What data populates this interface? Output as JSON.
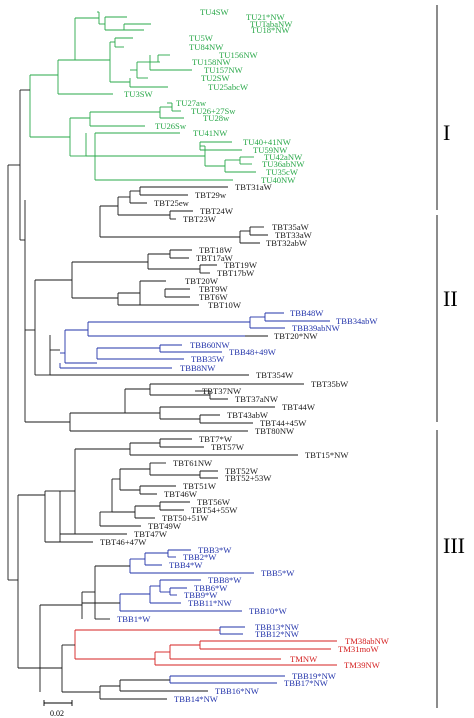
{
  "colors": {
    "I": "#2aa84a",
    "II": "#1a1a1a",
    "blue": "#2233aa",
    "III": "#1a1a1a",
    "red": "#d42020",
    "bar": "#000000"
  },
  "clades": [
    {
      "label": "I"
    },
    {
      "label": "II"
    },
    {
      "label": "III"
    }
  ],
  "scale": {
    "label": "0.02"
  },
  "leaves": [
    {
      "label": "TU4SW",
      "color": "I"
    },
    {
      "label": "TU21*NW",
      "color": "I"
    },
    {
      "label": "TUTabaNW",
      "color": "I"
    },
    {
      "label": "TU18*NW",
      "color": "I"
    },
    {
      "label": "TU5W",
      "color": "I"
    },
    {
      "label": "TU84NW",
      "color": "I"
    },
    {
      "label": "TU156NW",
      "color": "I"
    },
    {
      "label": "TU158NW",
      "color": "I"
    },
    {
      "label": "TU157NW",
      "color": "I"
    },
    {
      "label": "TU2SW",
      "color": "I"
    },
    {
      "label": "TU25abcW",
      "color": "I"
    },
    {
      "label": "TU3SW",
      "color": "I"
    },
    {
      "label": "TU27aw",
      "color": "I"
    },
    {
      "label": "TU26+27Sw",
      "color": "I"
    },
    {
      "label": "TU28w",
      "color": "I"
    },
    {
      "label": "TU26Sw",
      "color": "I"
    },
    {
      "label": "TU41NW",
      "color": "I"
    },
    {
      "label": "TU40+41NW",
      "color": "I"
    },
    {
      "label": "TU59NW",
      "color": "I"
    },
    {
      "label": "TU42aNW",
      "color": "I"
    },
    {
      "label": "TU36abNW",
      "color": "I"
    },
    {
      "label": "TU35cW",
      "color": "I"
    },
    {
      "label": "TU40NW",
      "color": "I"
    },
    {
      "label": "TBT31aW",
      "color": "II"
    },
    {
      "label": "TBT29w",
      "color": "II"
    },
    {
      "label": "TBT25ew",
      "color": "II"
    },
    {
      "label": "TBT24W",
      "color": "II"
    },
    {
      "label": "TBT23W",
      "color": "II"
    },
    {
      "label": "TBT35aW",
      "color": "II"
    },
    {
      "label": "TBT33aW",
      "color": "II"
    },
    {
      "label": "TBT32abW",
      "color": "II"
    },
    {
      "label": "TBT18W",
      "color": "II"
    },
    {
      "label": "TBT17aW",
      "color": "II"
    },
    {
      "label": "TBT19W",
      "color": "II"
    },
    {
      "label": "TBT17bW",
      "color": "II"
    },
    {
      "label": "TBT20W",
      "color": "II"
    },
    {
      "label": "TBT9W",
      "color": "II"
    },
    {
      "label": "TBT6W",
      "color": "II"
    },
    {
      "label": "TBT10W",
      "color": "II"
    },
    {
      "label": "TBB48W",
      "color": "blue"
    },
    {
      "label": "TBB34abW",
      "color": "blue"
    },
    {
      "label": "TBB39abNW",
      "color": "blue"
    },
    {
      "label": "TBT20*NW",
      "color": "II"
    },
    {
      "label": "TBB60NW",
      "color": "blue"
    },
    {
      "label": "TBB48+49W",
      "color": "blue"
    },
    {
      "label": "TBB35W",
      "color": "blue"
    },
    {
      "label": "TBB8NW",
      "color": "blue"
    },
    {
      "label": "TBT354W",
      "color": "II"
    },
    {
      "label": "TBT35bW",
      "color": "II"
    },
    {
      "label": "TBT37NW",
      "color": "II"
    },
    {
      "label": "TBT37aNW",
      "color": "II"
    },
    {
      "label": "TBT44W",
      "color": "II"
    },
    {
      "label": "TBT43abW",
      "color": "II"
    },
    {
      "label": "TBT44+45W",
      "color": "II"
    },
    {
      "label": "TBT80NW",
      "color": "III"
    },
    {
      "label": "TBT7*W",
      "color": "III"
    },
    {
      "label": "TBT57W",
      "color": "III"
    },
    {
      "label": "TBT15*NW",
      "color": "III"
    },
    {
      "label": "TBT61NW",
      "color": "III"
    },
    {
      "label": "TBT52W",
      "color": "III"
    },
    {
      "label": "TBT52+53W",
      "color": "III"
    },
    {
      "label": "TBT51W",
      "color": "III"
    },
    {
      "label": "TBT46W",
      "color": "III"
    },
    {
      "label": "TBT56W",
      "color": "III"
    },
    {
      "label": "TBT54+55W",
      "color": "III"
    },
    {
      "label": "TBT50+51W",
      "color": "III"
    },
    {
      "label": "TBT49W",
      "color": "III"
    },
    {
      "label": "TBT47W",
      "color": "III"
    },
    {
      "label": "TBT46+47W",
      "color": "III"
    },
    {
      "label": "TBB3*W",
      "color": "blue"
    },
    {
      "label": "TBB2*W",
      "color": "blue"
    },
    {
      "label": "TBB4*W",
      "color": "blue"
    },
    {
      "label": "TBB5*W",
      "color": "blue"
    },
    {
      "label": "TBB8*W",
      "color": "blue"
    },
    {
      "label": "TBB6*W",
      "color": "blue"
    },
    {
      "label": "TBB9*W",
      "color": "blue"
    },
    {
      "label": "TBB11*NW",
      "color": "blue"
    },
    {
      "label": "TBB10*W",
      "color": "blue"
    },
    {
      "label": "TBB1*W",
      "color": "blue"
    },
    {
      "label": "TBB13*NW",
      "color": "blue"
    },
    {
      "label": "TBB12*NW",
      "color": "blue"
    },
    {
      "label": "TM38abNW",
      "color": "red"
    },
    {
      "label": "TM31moW",
      "color": "red"
    },
    {
      "label": "TMNW",
      "color": "red"
    },
    {
      "label": "TM39NW",
      "color": "red"
    },
    {
      "label": "TBB19*NW",
      "color": "blue"
    },
    {
      "label": "TBB17*NW",
      "color": "blue"
    },
    {
      "label": "TBB16*NW",
      "color": "blue"
    },
    {
      "label": "TBB14*NW",
      "color": "blue"
    }
  ]
}
